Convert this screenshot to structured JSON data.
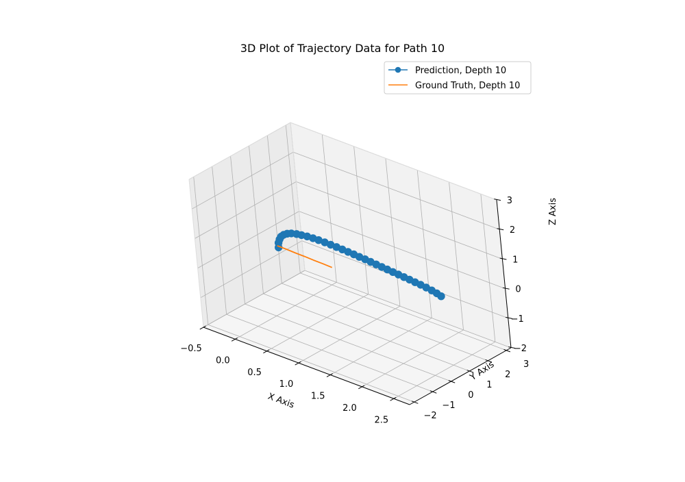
{
  "chart_data": {
    "type": "line3d",
    "title": "3D Plot of Trajectory Data for Path 10",
    "xlabel": "X Axis",
    "ylabel": "Y Axis",
    "zlabel": "Z Axis",
    "xlim": [
      -0.5,
      2.75
    ],
    "ylim": [
      -2.25,
      3.25
    ],
    "zlim": [
      -2,
      3
    ],
    "xticks": [
      "−0.5",
      "0.0",
      "0.5",
      "1.0",
      "1.5",
      "2.0",
      "2.5"
    ],
    "xtick_values": [
      -0.5,
      0.0,
      0.5,
      1.0,
      1.5,
      2.0,
      2.5
    ],
    "yticks": [
      "−2",
      "−1",
      "0",
      "1",
      "2",
      "3"
    ],
    "ytick_values": [
      -2,
      -1,
      0,
      1,
      2,
      3
    ],
    "zticks": [
      "−2",
      "−1",
      "0",
      "1",
      "2",
      "3"
    ],
    "ztick_values": [
      -2,
      -1,
      0,
      1,
      2,
      3
    ],
    "grid": true,
    "legend_position": "top-right",
    "series": [
      {
        "name": "Prediction, Depth 10",
        "color": "#1f77b4",
        "marker": "circle",
        "points": [
          [
            -0.19,
            1.04,
            -0.2
          ],
          [
            -0.19,
            1.06,
            -0.05
          ],
          [
            -0.18,
            1.1,
            0.06
          ],
          [
            -0.17,
            1.16,
            0.14
          ],
          [
            -0.15,
            1.24,
            0.19
          ],
          [
            -0.12,
            1.33,
            0.22
          ],
          [
            -0.08,
            1.42,
            0.23
          ],
          [
            -0.02,
            1.5,
            0.23
          ],
          [
            0.04,
            1.56,
            0.22
          ],
          [
            0.11,
            1.62,
            0.21
          ],
          [
            0.19,
            1.66,
            0.2
          ],
          [
            0.27,
            1.69,
            0.19
          ],
          [
            0.36,
            1.71,
            0.18
          ],
          [
            0.45,
            1.72,
            0.17
          ],
          [
            0.54,
            1.73,
            0.16
          ],
          [
            0.63,
            1.73,
            0.15
          ],
          [
            0.72,
            1.73,
            0.14
          ],
          [
            0.81,
            1.73,
            0.13
          ],
          [
            0.9,
            1.72,
            0.12
          ],
          [
            0.99,
            1.72,
            0.11
          ],
          [
            1.08,
            1.71,
            0.1
          ],
          [
            1.17,
            1.7,
            0.09
          ],
          [
            1.26,
            1.69,
            0.08
          ],
          [
            1.35,
            1.68,
            0.07
          ],
          [
            1.44,
            1.67,
            0.06
          ],
          [
            1.53,
            1.66,
            0.05
          ],
          [
            1.62,
            1.65,
            0.04
          ],
          [
            1.71,
            1.64,
            0.03
          ],
          [
            1.8,
            1.63,
            0.02
          ],
          [
            1.89,
            1.62,
            0.01
          ],
          [
            1.98,
            1.61,
            -0.01
          ],
          [
            2.07,
            1.6,
            -0.03
          ],
          [
            2.15,
            1.59,
            -0.06
          ],
          [
            2.22,
            1.58,
            -0.1
          ]
        ]
      },
      {
        "name": "Ground Truth, Depth 10",
        "color": "#ff7f0e",
        "marker": "none",
        "points": [
          [
            -0.2,
            1.01,
            -0.14
          ],
          [
            -0.05,
            0.99,
            -0.13
          ],
          [
            0.1,
            0.97,
            -0.13
          ],
          [
            0.25,
            0.95,
            -0.12
          ],
          [
            0.4,
            0.93,
            -0.12
          ],
          [
            0.55,
            0.91,
            -0.11
          ],
          [
            0.7,
            0.89,
            -0.11
          ]
        ]
      }
    ]
  }
}
